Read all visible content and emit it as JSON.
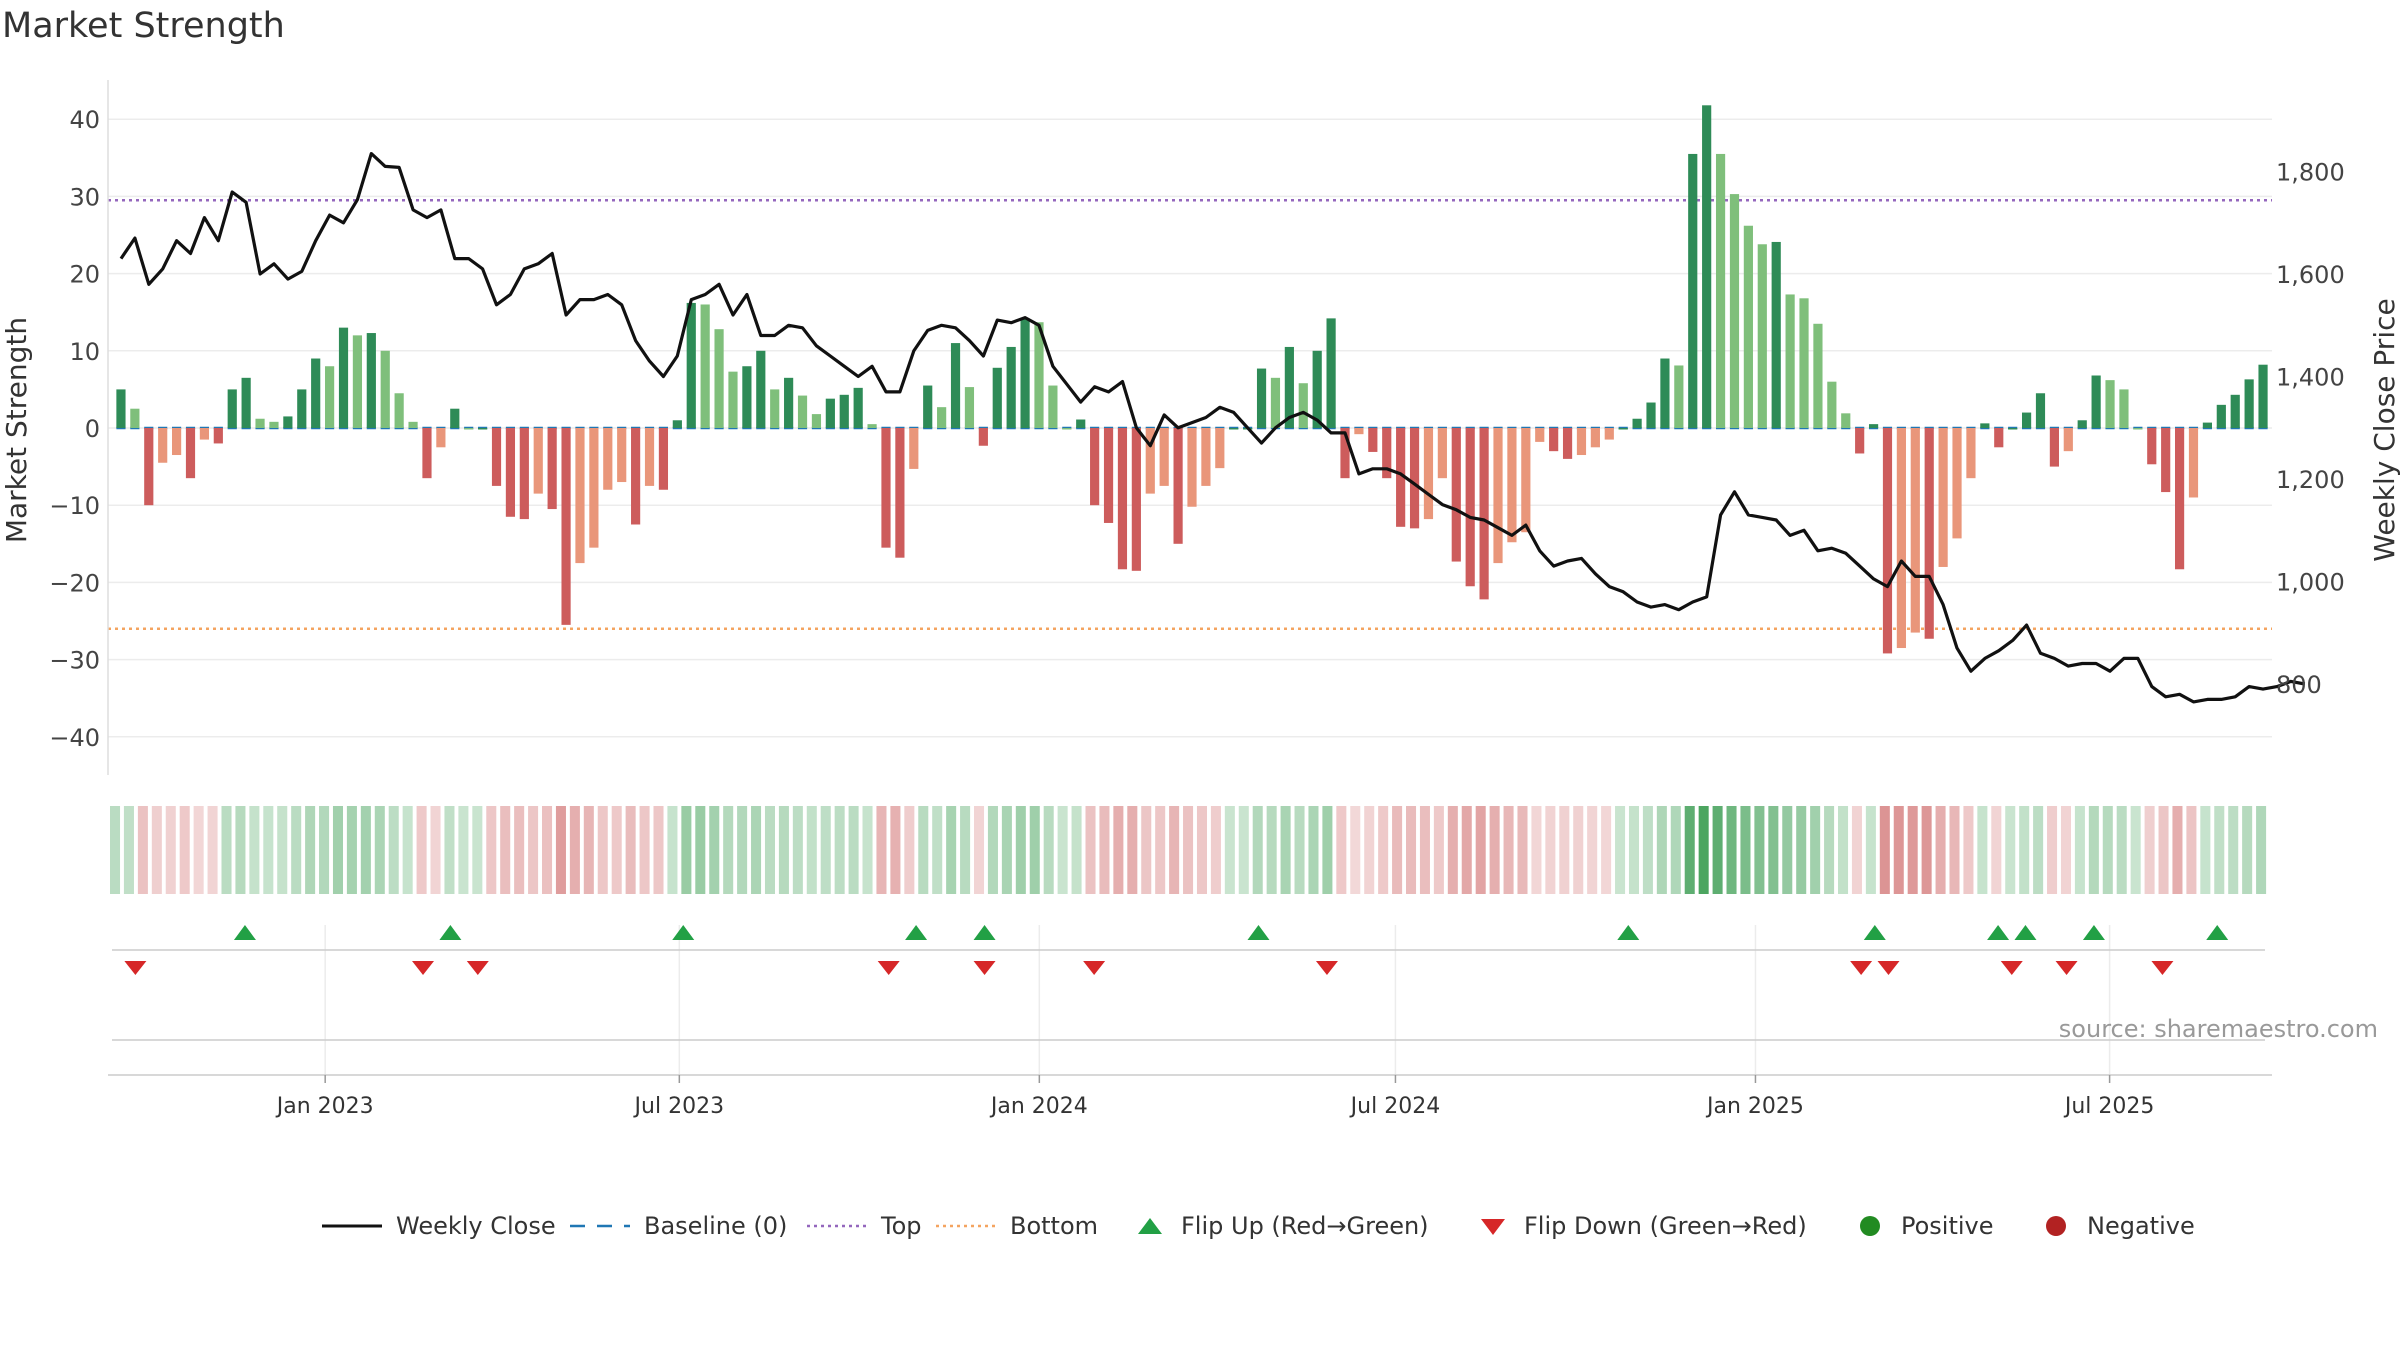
{
  "title": "Market Strength",
  "source": "source: sharemaestro.com",
  "colors": {
    "strong_green": "#2e8b57",
    "light_green": "#7fbf7b",
    "strong_red": "#cd5c5c",
    "light_red": "#e9967a",
    "close_line": "#111111",
    "baseline": "#1f77b4",
    "top": "#9467bd",
    "bottom": "#f4a460",
    "flip_up": "#22a045",
    "flip_down": "#d62728",
    "positive": "#228b22",
    "negative": "#b22222"
  },
  "legend": [
    {
      "label": "Weekly Close",
      "icon": "solid-line-icon"
    },
    {
      "label": "Baseline (0)",
      "icon": "dashed-line-icon"
    },
    {
      "label": "Top",
      "icon": "dotted-purple-line-icon"
    },
    {
      "label": "Bottom",
      "icon": "dotted-orange-line-icon"
    },
    {
      "label": "Flip Up (Red→Green)",
      "icon": "triangle-up-icon"
    },
    {
      "label": "Flip Down (Green→Red)",
      "icon": "triangle-down-icon"
    },
    {
      "label": "Positive",
      "icon": "green-dot-icon"
    },
    {
      "label": "Negative",
      "icon": "red-dot-icon"
    }
  ],
  "chart_data": {
    "type": "bar",
    "title": "Market Strength",
    "ylabel": "Market Strength",
    "y2label": "Weekly Close Price",
    "ylim": [
      -45,
      45
    ],
    "y_ticks": [
      40,
      30,
      20,
      10,
      0,
      -10,
      -20,
      -30,
      -40
    ],
    "y_tick_labels": [
      "40",
      "30",
      "20",
      "10",
      "0",
      "−10",
      "−20",
      "−30",
      "−40"
    ],
    "y2lim": [
      640,
      1960
    ],
    "y2_ticks": [
      800,
      1000,
      1200,
      1400,
      1600,
      1800
    ],
    "y2_tick_labels": [
      "800",
      "1,000",
      "1,200",
      "1,400",
      "1,600",
      "1,800"
    ],
    "x_range": [
      "2022-09-12",
      "2025-09-22"
    ],
    "x_ticks": [
      "2023-01-01",
      "2023-07-01",
      "2024-01-01",
      "2024-07-01",
      "2025-01-01",
      "2025-07-01"
    ],
    "x_tick_labels": [
      "Jan 2023",
      "Jul 2023",
      "Jan 2024",
      "Jul 2024",
      "Jan 2025",
      "Jul 2025"
    ],
    "top_level": 29.5,
    "bottom_level": -26,
    "baseline": 0,
    "grid": true,
    "legend_position": "bottom",
    "series": [
      {
        "name": "Market Strength",
        "values": [
          5,
          2.5,
          -10,
          -4.5,
          -3.5,
          -6.5,
          -1.5,
          -2,
          5,
          6.5,
          1.2,
          0.8,
          1.5,
          5,
          9,
          8,
          13,
          12,
          12.3,
          10,
          4.5,
          0.8,
          -6.5,
          -2.5,
          2.5,
          0,
          0,
          -7.5,
          -11.5,
          -11.8,
          -8.5,
          -10.5,
          -25.5,
          -17.5,
          -15.5,
          -8,
          -7,
          -12.5,
          -7.5,
          -8,
          1,
          16.2,
          16,
          12.8,
          7.3,
          8,
          10,
          5,
          6.5,
          4.2,
          1.8,
          3.8,
          4.3,
          5.2,
          0.5,
          -15.5,
          -16.8,
          -5.3,
          5.5,
          2.7,
          11,
          5.3,
          -2.3,
          7.8,
          10.5,
          14.2,
          13.7,
          5.5,
          0,
          1.1,
          -10,
          -12.3,
          -18.3,
          -18.5,
          -8.5,
          -7.5,
          -15,
          -10.2,
          -7.5,
          -5.2,
          0,
          0,
          7.7,
          6.5,
          10.5,
          5.8,
          10,
          14.2,
          -6.5,
          -0.8,
          -3.1,
          -6.5,
          -12.8,
          -13,
          -11.8,
          -6.5,
          -17.3,
          -20.5,
          -22.2,
          -17.5,
          -14.8,
          -13.5,
          -1.8,
          -3,
          -4,
          -3.5,
          -2.5,
          -1.5,
          0,
          1.2,
          3.3,
          9,
          8.1,
          35.5,
          41.8,
          35.5,
          30.3,
          26.2,
          23.8,
          24.1,
          17.3,
          16.8,
          13.5,
          6,
          1.9,
          -3.3,
          0.5,
          -29.2,
          -28.5,
          -26.5,
          -27.3,
          -18,
          -14.3,
          -6.5,
          0.6,
          -2.5,
          0,
          2,
          4.5,
          -5,
          -3,
          1,
          6.8,
          6.2,
          5,
          0,
          -4.7,
          -8.3,
          -18.3,
          -9,
          0.7,
          3,
          4.3,
          6.3,
          8.2
        ]
      },
      {
        "name": "Weekly Close",
        "axis": "right",
        "values": [
          1630,
          1670,
          1580,
          1610,
          1665,
          1640,
          1710,
          1665,
          1760,
          1740,
          1600,
          1620,
          1590,
          1605,
          1665,
          1715,
          1700,
          1745,
          1835,
          1810,
          1808,
          1725,
          1710,
          1725,
          1630,
          1630,
          1610,
          1540,
          1560,
          1610,
          1620,
          1640,
          1520,
          1550,
          1550,
          1560,
          1540,
          1470,
          1430,
          1400,
          1440,
          1550,
          1560,
          1580,
          1520,
          1560,
          1480,
          1480,
          1500,
          1495,
          1460,
          1440,
          1420,
          1400,
          1420,
          1370,
          1370,
          1450,
          1490,
          1500,
          1495,
          1470,
          1440,
          1510,
          1505,
          1515,
          1500,
          1420,
          1385,
          1350,
          1380,
          1370,
          1390,
          1300,
          1265,
          1325,
          1300,
          1310,
          1320,
          1340,
          1330,
          1300,
          1270,
          1300,
          1320,
          1330,
          1315,
          1290,
          1290,
          1210,
          1220,
          1220,
          1210,
          1190,
          1170,
          1150,
          1140,
          1125,
          1120,
          1105,
          1090,
          1110,
          1060,
          1030,
          1040,
          1045,
          1015,
          990,
          980,
          960,
          950,
          955,
          945,
          960,
          970,
          1130,
          1175,
          1130,
          1125,
          1120,
          1090,
          1100,
          1060,
          1065,
          1055,
          1030,
          1005,
          990,
          1040,
          1010,
          1010,
          955,
          870,
          825,
          850,
          865,
          885,
          915,
          860,
          850,
          835,
          840,
          840,
          825,
          850,
          850,
          795,
          775,
          780,
          765,
          770,
          770,
          775,
          795,
          790,
          795,
          805,
          800
        ]
      }
    ],
    "flip_up_dates": [
      "2022-11-21",
      "2023-03-06",
      "2023-07-03",
      "2023-10-30",
      "2023-12-04",
      "2024-04-22",
      "2024-10-28",
      "2025-03-03",
      "2025-05-05",
      "2025-05-19",
      "2025-06-23",
      "2025-08-25"
    ],
    "flip_down_dates": [
      "2022-09-26",
      "2023-02-20",
      "2023-03-20",
      "2023-10-16",
      "2023-12-04",
      "2024-01-29",
      "2024-05-27",
      "2025-02-24",
      "2025-03-10",
      "2025-05-12",
      "2025-06-09",
      "2025-07-28"
    ]
  }
}
